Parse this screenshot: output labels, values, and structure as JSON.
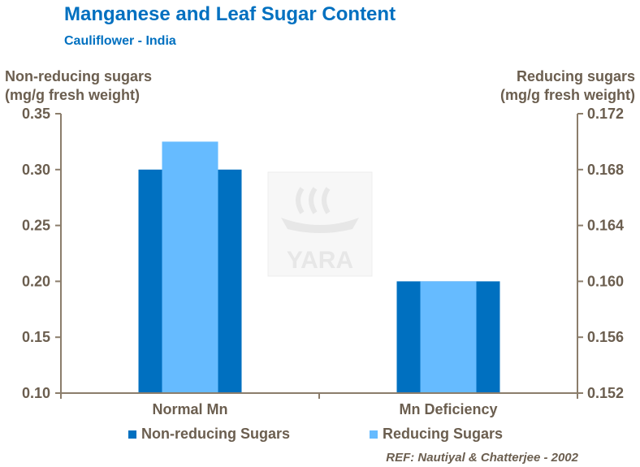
{
  "title": "Manganese and Leaf Sugar Content",
  "subtitle": "Cauliflower  - India",
  "watermark": "YARA",
  "reference": "REF: Nautiyal & Chatterjee - 2002",
  "colors": {
    "title": "#0070c0",
    "axis": "#8b7d6b",
    "text": "#6b5e4f",
    "non_reducing": "#0070c0",
    "reducing": "#66bbff"
  },
  "chart_data": {
    "type": "bar",
    "title": "Manganese and Leaf Sugar Content",
    "subtitle": "Cauliflower  - India",
    "categories": [
      "Normal Mn",
      "Mn Deficiency"
    ],
    "y_left": {
      "label_lines": [
        "Non-reducing sugars",
        "(mg/g fresh weight)"
      ],
      "ylim": [
        0.1,
        0.35
      ],
      "ticks": [
        "0.35",
        "0.30",
        "0.25",
        "0.20",
        "0.15",
        "0.10"
      ],
      "tick_values": [
        0.35,
        0.3,
        0.25,
        0.2,
        0.15,
        0.1
      ]
    },
    "y_right": {
      "label_lines": [
        "Reducing sugars",
        "(mg/g fresh weight)"
      ],
      "ylim": [
        0.152,
        0.172
      ],
      "ticks": [
        "0.172",
        "0.168",
        "0.164",
        "0.160",
        "0.156",
        "0.152"
      ],
      "tick_values": [
        0.172,
        0.168,
        0.164,
        0.16,
        0.156,
        0.152
      ]
    },
    "series": [
      {
        "name": "Non-reducing Sugars",
        "axis": "left",
        "values": [
          0.3,
          0.2
        ]
      },
      {
        "name": "Reducing Sugars",
        "axis": "right",
        "values": [
          0.17,
          0.16
        ]
      }
    ],
    "legend": [
      "Non-reducing Sugars",
      "Reducing Sugars"
    ],
    "legend_position": "bottom",
    "grid": false
  }
}
